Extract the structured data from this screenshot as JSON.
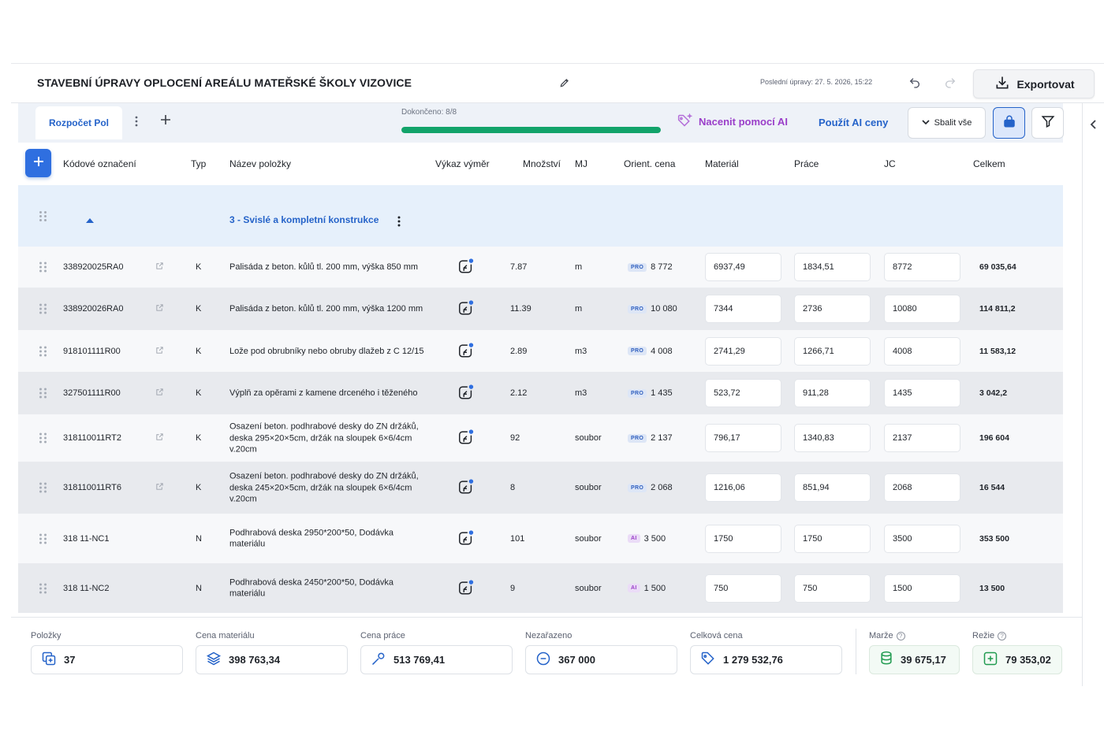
{
  "header": {
    "title": "STAVEBNÍ ÚPRAVY OPLOCENÍ AREÁLU MATEŘSKÉ ŠKOLY VIZOVICE",
    "last_modified": "Poslední úpravy: 27. 5. 2026, 15:22",
    "export_label": "Exportovat"
  },
  "toolbar": {
    "tab_label": "Rozpočet Pol",
    "progress_label": "Dokončeno: 8/8",
    "progress_value": 1.0,
    "ai_price_label": "Nacenit pomocí AI",
    "ai_use_label": "Použít AI ceny",
    "collapse_label": "Sbalit vše"
  },
  "table": {
    "columns": {
      "code": "Kódové označení",
      "type": "Typ",
      "name": "Název položky",
      "vykaz": "Výkaz výměr",
      "qty": "Množství",
      "mj": "MJ",
      "orient": "Orient. cena",
      "material": "Materiál",
      "prace": "Práce",
      "jc": "JC",
      "total": "Celkem"
    },
    "group_title": "3 - Svislé a kompletní konstrukce",
    "rows": [
      {
        "code": "338920025RA0",
        "type": "K",
        "name": "Palisáda z beton. kůlů tl. 200 mm, výška 850 mm",
        "qty": "7.87",
        "mj": "m",
        "badge": "PRO",
        "orient": "8 772",
        "material": "6937,49",
        "prace": "1834,51",
        "jc": "8772",
        "total": "69 035,64"
      },
      {
        "code": "338920026RA0",
        "type": "K",
        "name": "Palisáda z beton. kůlů tl. 200 mm, výška 1200 mm",
        "qty": "11.39",
        "mj": "m",
        "badge": "PRO",
        "orient": "10 080",
        "material": "7344",
        "prace": "2736",
        "jc": "10080",
        "total": "114 811,2"
      },
      {
        "code": "918101111R00",
        "type": "K",
        "name": "Lože pod obrubníky nebo obruby dlažeb z C 12/15",
        "qty": "2.89",
        "mj": "m3",
        "badge": "PRO",
        "orient": "4 008",
        "material": "2741,29",
        "prace": "1266,71",
        "jc": "4008",
        "total": "11 583,12"
      },
      {
        "code": "327501111R00",
        "type": "K",
        "name": "Výplň za opěrami z kamene drceného i těženého",
        "qty": "2.12",
        "mj": "m3",
        "badge": "PRO",
        "orient": "1 435",
        "material": "523,72",
        "prace": "911,28",
        "jc": "1435",
        "total": "3 042,2"
      },
      {
        "code": "318110011RT2",
        "type": "K",
        "name": "Osazení beton. podhrabové desky do ZN držáků, deska 295×20×5cm, držák na sloupek 6×6/4cm v.20cm",
        "qty": "92",
        "mj": "soubor",
        "badge": "PRO",
        "orient": "2 137",
        "material": "796,17",
        "prace": "1340,83",
        "jc": "2137",
        "total": "196 604"
      },
      {
        "code": "318110011RT6",
        "type": "K",
        "name": "Osazení beton. podhrabové desky do ZN držáků, deska 245×20×5cm, držák na sloupek 6×6/4cm v.20cm",
        "qty": "8",
        "mj": "soubor",
        "badge": "PRO",
        "orient": "2 068",
        "material": "1216,06",
        "prace": "851,94",
        "jc": "2068",
        "total": "16 544"
      },
      {
        "code": "318 11-NC1",
        "type": "N",
        "name": "Podhrabová deska 2950*200*50, Dodávka materiálu",
        "qty": "101",
        "mj": "soubor",
        "badge": "AI",
        "orient": "3 500",
        "material": "1750",
        "prace": "1750",
        "jc": "3500",
        "total": "353 500"
      },
      {
        "code": "318 11-NC2",
        "type": "N",
        "name": "Podhrabová deska 2450*200*50, Dodávka materiálu",
        "qty": "9",
        "mj": "soubor",
        "badge": "AI",
        "orient": "1 500",
        "material": "750",
        "prace": "750",
        "jc": "1500",
        "total": "13 500"
      }
    ]
  },
  "footer": {
    "items": [
      {
        "label": "Položky",
        "value": "37",
        "icon": "copy-plus-icon"
      },
      {
        "label": "Cena materiálu",
        "value": "398 763,34",
        "icon": "layers-icon"
      },
      {
        "label": "Cena práce",
        "value": "513 769,41",
        "icon": "tool-icon"
      },
      {
        "label": "Nezařazeno",
        "value": "367 000",
        "icon": "minus-circle-icon"
      },
      {
        "label": "Celková cena",
        "value": "1 279 532,76",
        "icon": "tag-icon"
      },
      {
        "label": "Marže",
        "value": "39 675,17",
        "icon": "coins-icon"
      },
      {
        "label": "Režie",
        "value": "79 353,02",
        "icon": "plus-square-icon"
      }
    ]
  },
  "colors": {
    "accent": "#2563c9",
    "ai_purple": "#9a3ec9",
    "progress_green": "#12a36a",
    "group_bg": "#e6f0fb"
  }
}
